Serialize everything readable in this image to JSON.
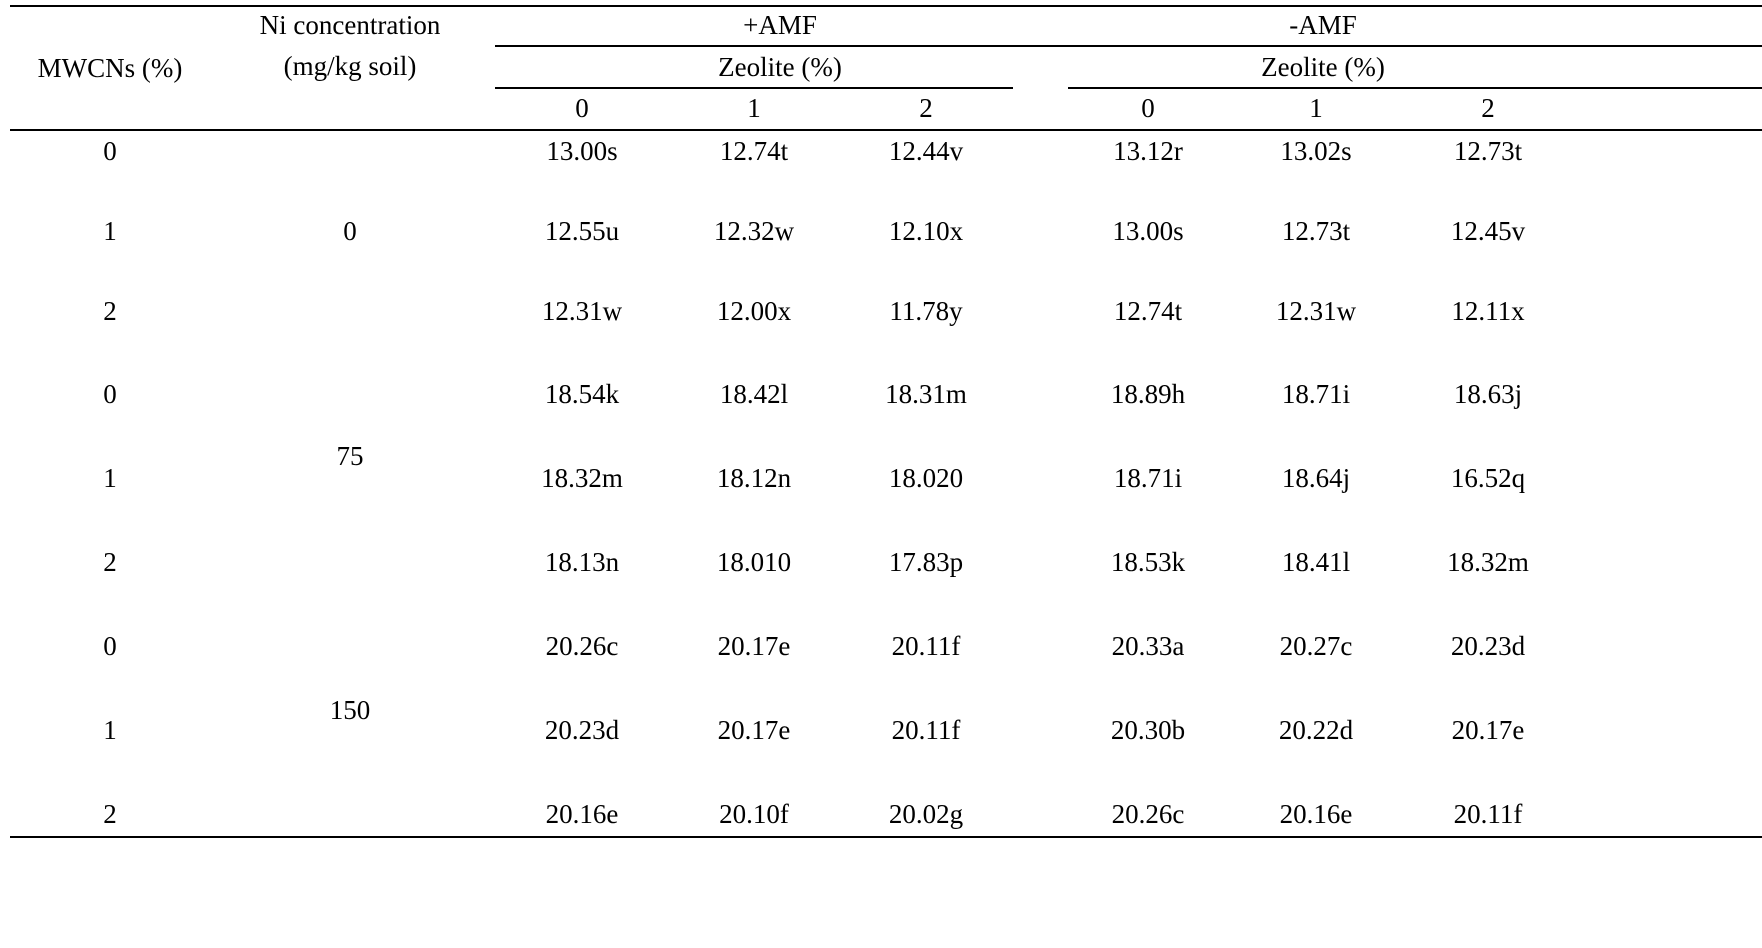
{
  "table": {
    "header": {
      "mwcns": "MWCNs (%)",
      "ni_line1": "Ni concentration",
      "ni_line2": "(mg/kg soil)",
      "plus_amf": "+AMF",
      "minus_amf": "-AMF",
      "zeolite_plus": "Zeolite (%)",
      "zeolite_minus": "Zeolite (%)",
      "levels": [
        "0",
        "1",
        "2",
        "0",
        "1",
        "2"
      ]
    },
    "groups": [
      {
        "ni": "0",
        "rows": [
          {
            "mwcns": "0",
            "values": [
              "13.00s",
              "12.74t",
              "12.44v",
              "13.12r",
              "13.02s",
              "12.73t"
            ]
          },
          {
            "mwcns": "1",
            "values": [
              "12.55u",
              "12.32w",
              "12.10x",
              "13.00s",
              "12.73t",
              "12.45v"
            ]
          },
          {
            "mwcns": "2",
            "values": [
              "12.31w",
              "12.00x",
              "11.78y",
              "12.74t",
              "12.31w",
              "12.11x"
            ]
          }
        ]
      },
      {
        "ni": "75",
        "rows": [
          {
            "mwcns": "0",
            "values": [
              "18.54k",
              "18.42l",
              "18.31m",
              "18.89h",
              "18.71i",
              "18.63j"
            ]
          },
          {
            "mwcns": "1",
            "values": [
              "18.32m",
              "18.12n",
              "18.020",
              "18.71i",
              "18.64j",
              "16.52q"
            ]
          },
          {
            "mwcns": "2",
            "values": [
              "18.13n",
              "18.010",
              "17.83p",
              "18.53k",
              "18.41l",
              "18.32m"
            ]
          }
        ]
      },
      {
        "ni": "150",
        "rows": [
          {
            "mwcns": "0",
            "values": [
              "20.26c",
              "20.17e",
              "20.11f",
              "20.33a",
              "20.27c",
              "20.23d"
            ]
          },
          {
            "mwcns": "1",
            "values": [
              "20.23d",
              "20.17e",
              "20.11f",
              "20.30b",
              "20.22d",
              "20.17e"
            ]
          },
          {
            "mwcns": "2",
            "values": [
              "20.16e",
              "20.10f",
              "20.02g",
              "20.26c",
              "20.16e",
              "20.11f"
            ]
          }
        ]
      }
    ]
  }
}
